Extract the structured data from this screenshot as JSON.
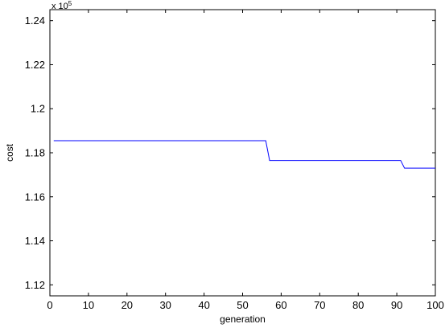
{
  "chart_data": {
    "type": "line",
    "title": "",
    "xlabel": "generation",
    "ylabel": "cost",
    "exponent_label": "x 10",
    "exponent_power": "5",
    "xlim": [
      0,
      100
    ],
    "ylim": [
      1.115,
      1.245
    ],
    "xticks": [
      0,
      10,
      20,
      30,
      40,
      50,
      60,
      70,
      80,
      90,
      100
    ],
    "xtick_labels": [
      "0",
      "10",
      "20",
      "30",
      "40",
      "50",
      "60",
      "70",
      "80",
      "90",
      "100"
    ],
    "yticks": [
      1.12,
      1.14,
      1.16,
      1.18,
      1.2,
      1.22,
      1.24
    ],
    "ytick_labels": [
      "1.12",
      "1.14",
      "1.16",
      "1.18",
      "1.2",
      "1.22",
      "1.24"
    ],
    "grid": false,
    "line_color": "#0000ff",
    "series": [
      {
        "x": [
          1,
          56,
          57,
          91,
          92,
          100
        ],
        "y": [
          1.1855,
          1.1855,
          1.1765,
          1.1765,
          1.173,
          1.173
        ]
      }
    ]
  }
}
